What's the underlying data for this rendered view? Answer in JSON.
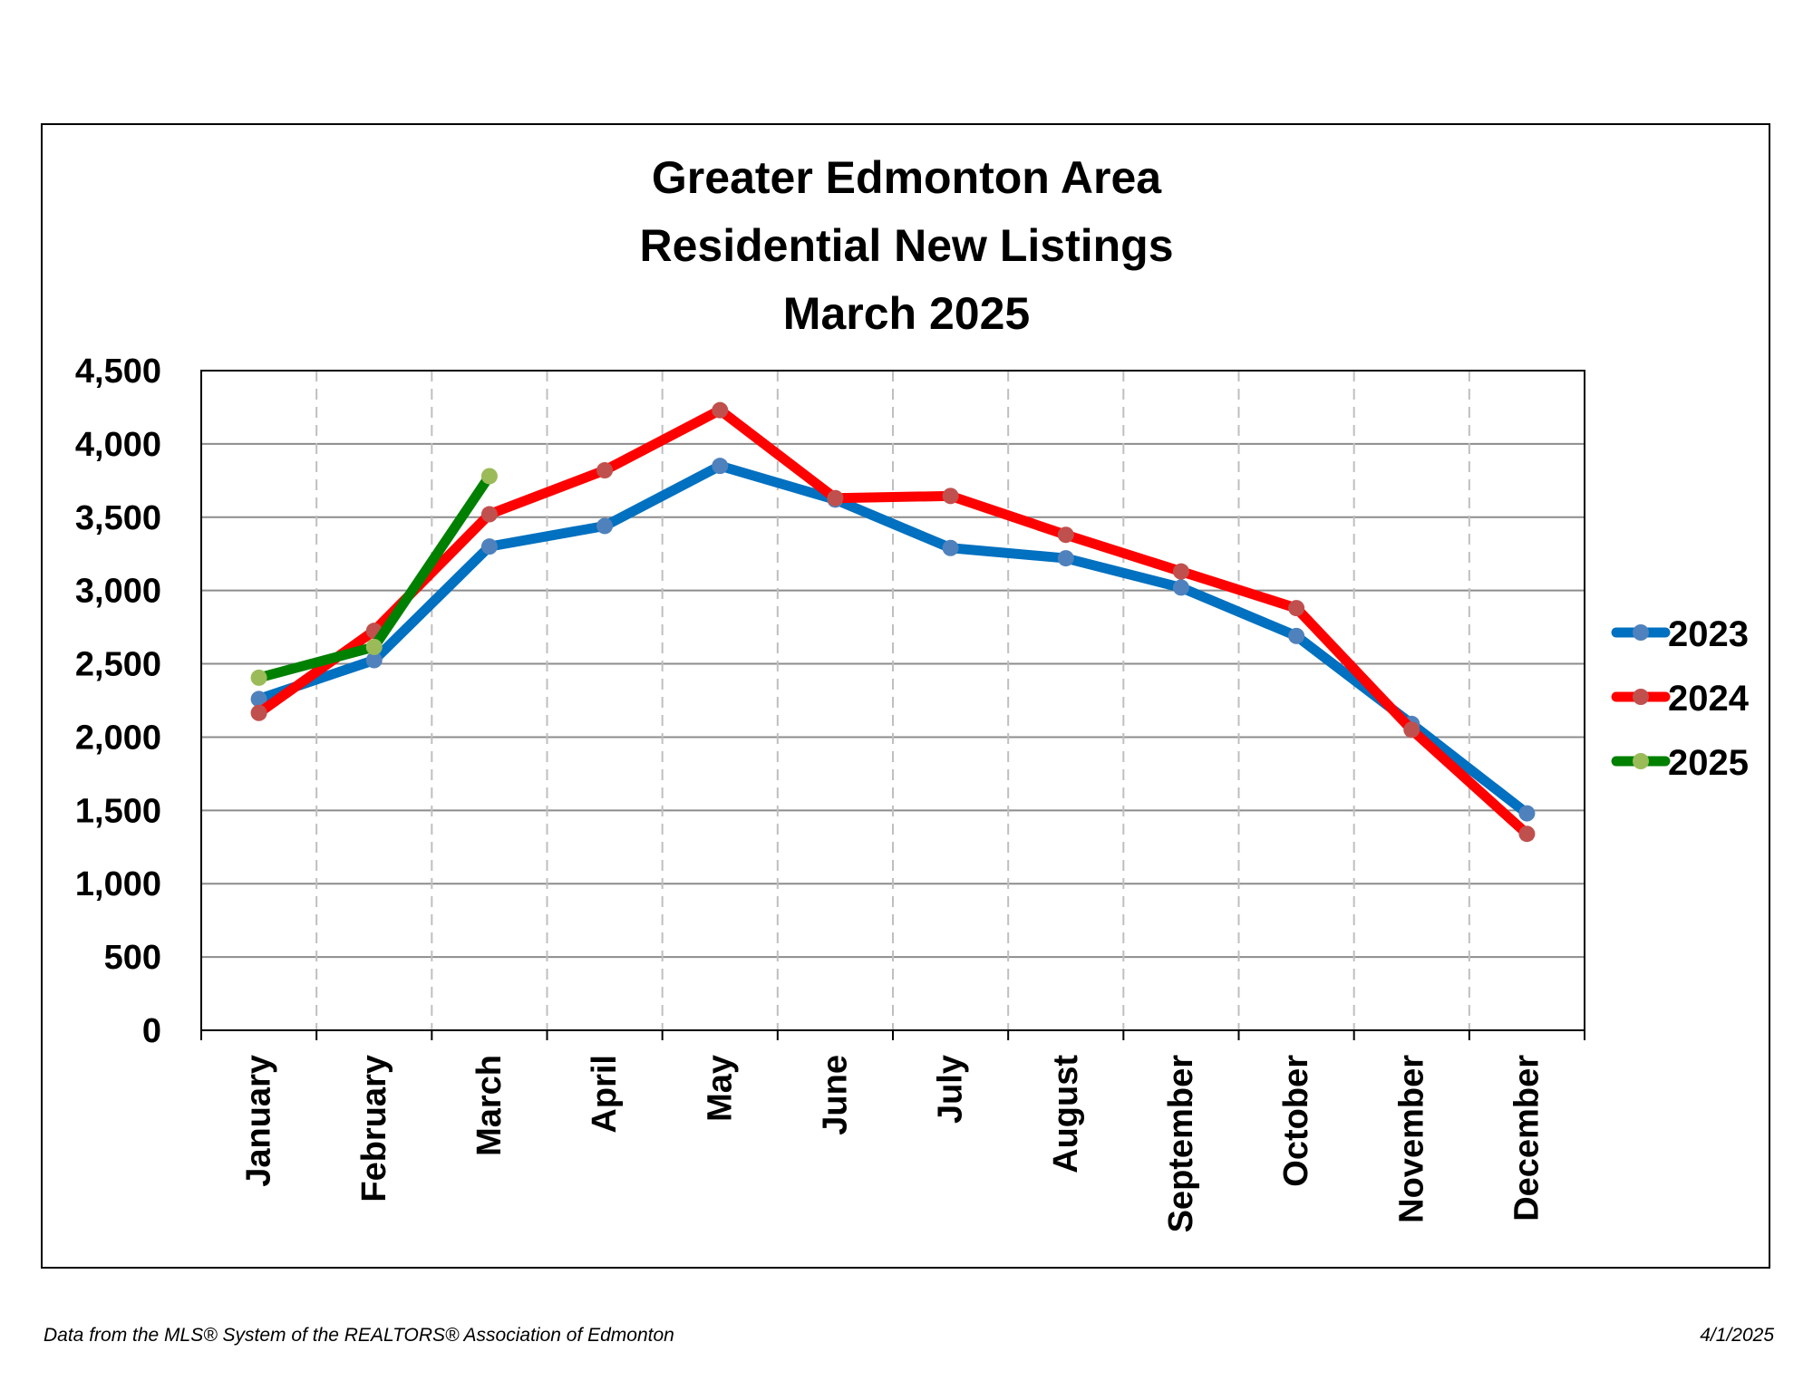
{
  "chart_data": {
    "type": "line",
    "title_lines": [
      "Greater Edmonton Area",
      "Residential New Listings",
      "March 2025"
    ],
    "xlabel": "",
    "ylabel": "",
    "ylim": [
      0,
      4500
    ],
    "y_ticks": [
      "0",
      "500",
      "1,000",
      "1,500",
      "2,000",
      "2,500",
      "3,000",
      "3,500",
      "4,000",
      "4,500"
    ],
    "y_tick_values": [
      0,
      500,
      1000,
      1500,
      2000,
      2500,
      3000,
      3500,
      4000,
      4500
    ],
    "categories": [
      "January",
      "February",
      "March",
      "April",
      "May",
      "June",
      "July",
      "August",
      "September",
      "October",
      "November",
      "December"
    ],
    "grid": {
      "horizontal": "solid",
      "vertical": "dashed"
    },
    "legend_position": "right",
    "series": [
      {
        "name": "2023",
        "line_color": "#0070C0",
        "marker_color": "#4F81BD",
        "values": [
          2260,
          2525,
          3300,
          3440,
          3850,
          3620,
          3290,
          3220,
          3020,
          2690,
          2090,
          1480
        ]
      },
      {
        "name": "2024",
        "line_color": "#FF0000",
        "marker_color": "#C0504D",
        "values": [
          2165,
          2725,
          3520,
          3820,
          4230,
          3630,
          3645,
          3380,
          3130,
          2880,
          2050,
          1340
        ]
      },
      {
        "name": "2025",
        "line_color": "#008000",
        "marker_color": "#9BBB59",
        "values": [
          2405,
          2615,
          3780,
          null,
          null,
          null,
          null,
          null,
          null,
          null,
          null,
          null
        ]
      }
    ]
  },
  "footer": {
    "source": "Data from the MLS® System of the REALTORS® Association of Edmonton",
    "date": "4/1/2025"
  }
}
